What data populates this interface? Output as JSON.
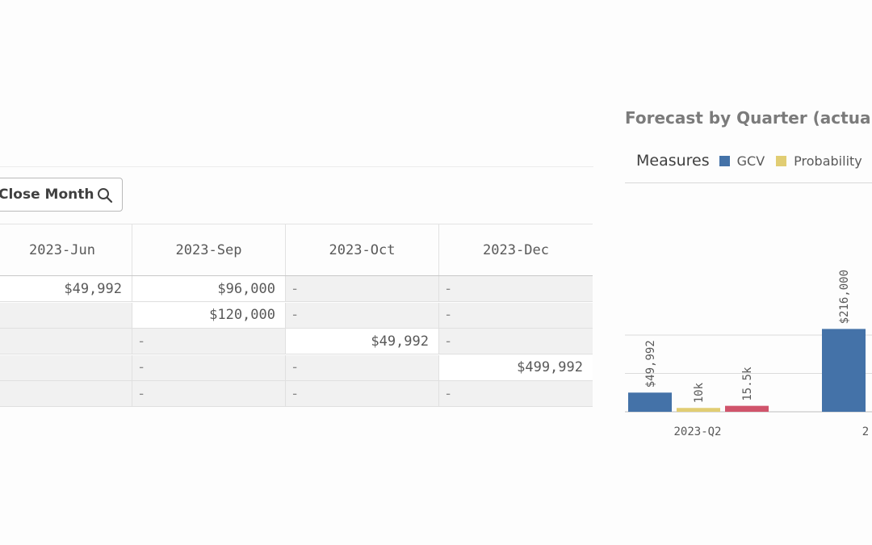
{
  "table": {
    "sort_button_label": "Close Month",
    "columns": [
      "2023-Jun",
      "2023-Sep",
      "2023-Oct",
      "2023-Dec"
    ],
    "rows": [
      [
        "$49,992",
        "$96,000",
        "-",
        "-"
      ],
      [
        "",
        "$120,000",
        "-",
        "-"
      ],
      [
        "",
        "-",
        "$49,992",
        "-"
      ],
      [
        "",
        "-",
        "-",
        "$499,992"
      ],
      [
        "",
        "-",
        "-",
        "-"
      ]
    ]
  },
  "chart": {
    "title": "Forecast by Quarter (actual v.",
    "legend_title": "Measures",
    "legend_items": [
      {
        "label": "GCV",
        "color": "#4472a8"
      },
      {
        "label": "Probability",
        "color": "#e1cd73"
      }
    ]
  },
  "chart_data": {
    "type": "bar",
    "title": "Forecast by Quarter (actual v.",
    "categories": [
      "2023-Q2",
      "2"
    ],
    "series": [
      {
        "name": "GCV",
        "color": "#4472a8",
        "values": [
          49992,
          216000
        ],
        "labels": [
          "$49,992",
          "$216,000"
        ]
      },
      {
        "name": "Probability",
        "color": "#e1cd73",
        "values": [
          10000,
          null
        ],
        "labels": [
          "10k",
          ""
        ]
      },
      {
        "name": "",
        "color": "#d0546b",
        "values": [
          15500,
          null
        ],
        "labels": [
          "15.5k",
          ""
        ]
      }
    ],
    "ylim": [
      0,
      400000
    ],
    "grid": true,
    "legend_position": "top"
  }
}
